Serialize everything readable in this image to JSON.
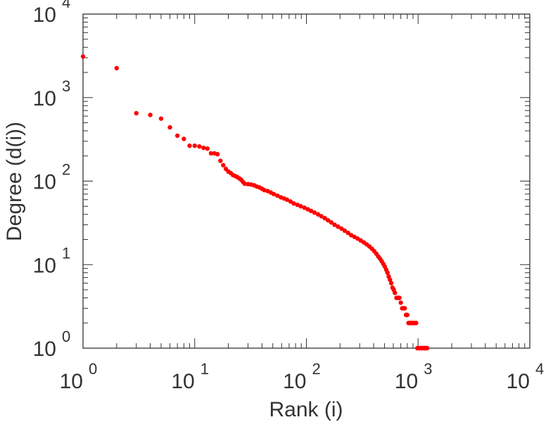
{
  "chart_data": {
    "type": "scatter",
    "title": "",
    "xlabel": "Rank (i)",
    "ylabel": "Degree (d(i))",
    "xscale": "log",
    "yscale": "log",
    "xlim": [
      1,
      10000
    ],
    "ylim": [
      1,
      10000
    ],
    "x_ticks": [
      {
        "base": "10",
        "exp": "0"
      },
      {
        "base": "10",
        "exp": "1"
      },
      {
        "base": "10",
        "exp": "2"
      },
      {
        "base": "10",
        "exp": "3"
      },
      {
        "base": "10",
        "exp": "4"
      }
    ],
    "y_ticks": [
      {
        "base": "10",
        "exp": "0"
      },
      {
        "base": "10",
        "exp": "1"
      },
      {
        "base": "10",
        "exp": "2"
      },
      {
        "base": "10",
        "exp": "3"
      },
      {
        "base": "10",
        "exp": "4"
      }
    ],
    "marker_color": "#ff0000",
    "axis_color": "#333333",
    "series": [
      {
        "name": "degree",
        "points": [
          [
            1,
            3100
          ],
          [
            2,
            2250
          ],
          [
            3,
            650
          ],
          [
            4,
            620
          ],
          [
            5,
            560
          ],
          [
            6,
            440
          ],
          [
            7,
            350
          ],
          [
            8,
            320
          ],
          [
            9,
            265
          ],
          [
            10,
            265
          ],
          [
            11,
            260
          ],
          [
            12,
            250
          ],
          [
            13,
            245
          ],
          [
            14,
            215
          ],
          [
            15,
            215
          ],
          [
            16,
            210
          ],
          [
            17,
            175
          ],
          [
            18,
            155
          ],
          [
            19,
            140
          ],
          [
            20,
            130
          ],
          [
            21,
            125
          ],
          [
            22,
            118
          ],
          [
            23,
            115
          ],
          [
            24,
            112
          ],
          [
            25,
            108
          ],
          [
            26,
            104
          ],
          [
            27,
            98
          ],
          [
            28,
            93
          ],
          [
            30,
            92
          ],
          [
            32,
            91
          ],
          [
            34,
            89
          ],
          [
            36,
            86
          ],
          [
            38,
            84
          ],
          [
            40,
            81
          ],
          [
            42,
            78
          ],
          [
            45,
            76
          ],
          [
            48,
            73
          ],
          [
            51,
            70
          ],
          [
            55,
            67
          ],
          [
            59,
            64
          ],
          [
            63,
            62
          ],
          [
            67,
            60
          ],
          [
            72,
            57
          ],
          [
            77,
            54
          ],
          [
            83,
            52
          ],
          [
            89,
            50
          ],
          [
            96,
            48
          ],
          [
            103,
            46
          ],
          [
            110,
            44
          ],
          [
            118,
            42
          ],
          [
            127,
            40
          ],
          [
            136,
            38
          ],
          [
            146,
            36
          ],
          [
            156,
            34
          ],
          [
            167,
            32
          ],
          [
            179,
            30
          ],
          [
            192,
            28.5
          ],
          [
            206,
            27
          ],
          [
            220,
            25.5
          ],
          [
            236,
            24
          ],
          [
            252,
            22.5
          ],
          [
            269,
            21.5
          ],
          [
            287,
            20.5
          ],
          [
            306,
            19.5
          ],
          [
            326,
            18.5
          ],
          [
            346,
            17.5
          ],
          [
            366,
            16.5
          ],
          [
            386,
            15.5
          ],
          [
            405,
            14.5
          ],
          [
            423,
            13.5
          ],
          [
            440,
            12.5
          ],
          [
            456,
            11.8
          ],
          [
            472,
            11
          ],
          [
            488,
            10.2
          ],
          [
            503,
            9.5
          ],
          [
            518,
            8.7
          ],
          [
            532,
            8
          ],
          [
            546,
            7.2
          ],
          [
            560,
            6.6
          ],
          [
            575,
            6
          ],
          [
            590,
            5.3
          ],
          [
            605,
            5
          ],
          [
            620,
            4.6
          ],
          [
            640,
            4
          ],
          [
            660,
            4
          ],
          [
            680,
            4
          ],
          [
            700,
            3.5
          ],
          [
            720,
            3
          ],
          [
            740,
            3
          ],
          [
            760,
            3
          ],
          [
            780,
            2.5
          ],
          [
            800,
            2.5
          ],
          [
            820,
            2
          ],
          [
            840,
            2
          ],
          [
            860,
            2
          ],
          [
            880,
            2
          ],
          [
            900,
            2
          ],
          [
            920,
            2
          ],
          [
            940,
            2
          ],
          [
            960,
            2
          ],
          [
            985,
            1
          ],
          [
            1005,
            1
          ],
          [
            1025,
            1
          ],
          [
            1045,
            1
          ],
          [
            1065,
            1
          ],
          [
            1085,
            1
          ],
          [
            1105,
            1
          ],
          [
            1125,
            1
          ],
          [
            1145,
            1
          ],
          [
            1165,
            1
          ],
          [
            1185,
            1
          ],
          [
            1205,
            1
          ]
        ]
      }
    ]
  }
}
